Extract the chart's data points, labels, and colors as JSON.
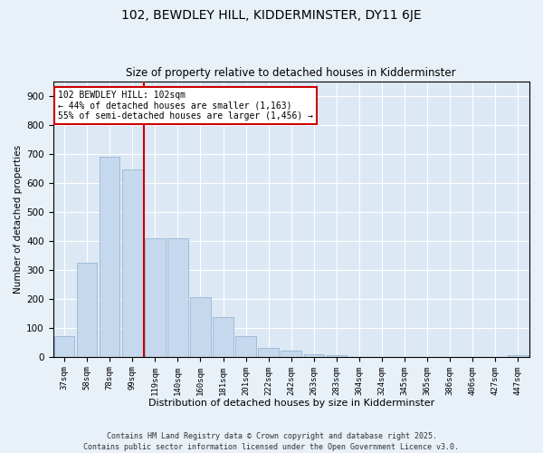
{
  "title1": "102, BEWDLEY HILL, KIDDERMINSTER, DY11 6JE",
  "title2": "Size of property relative to detached houses in Kidderminster",
  "xlabel": "Distribution of detached houses by size in Kidderminster",
  "ylabel": "Number of detached properties",
  "categories": [
    "37sqm",
    "58sqm",
    "78sqm",
    "99sqm",
    "119sqm",
    "140sqm",
    "160sqm",
    "181sqm",
    "201sqm",
    "222sqm",
    "242sqm",
    "263sqm",
    "283sqm",
    "304sqm",
    "324sqm",
    "345sqm",
    "365sqm",
    "386sqm",
    "406sqm",
    "427sqm",
    "447sqm"
  ],
  "values": [
    70,
    325,
    690,
    645,
    410,
    410,
    205,
    138,
    70,
    30,
    20,
    10,
    5,
    0,
    0,
    0,
    0,
    0,
    0,
    0,
    5
  ],
  "bar_color": "#c5d8ed",
  "bar_edge_color": "#a0bcd8",
  "vline_x": 3.5,
  "vline_color": "#cc0000",
  "annotation_text": "102 BEWDLEY HILL: 102sqm\n← 44% of detached houses are smaller (1,163)\n55% of semi-detached houses are larger (1,456) →",
  "annotation_box_color": "#ffffff",
  "annotation_box_edge": "#cc0000",
  "ylim": [
    0,
    950
  ],
  "yticks": [
    0,
    100,
    200,
    300,
    400,
    500,
    600,
    700,
    800,
    900
  ],
  "footnote": "Contains HM Land Registry data © Crown copyright and database right 2025.\nContains public sector information licensed under the Open Government Licence v3.0.",
  "bg_color": "#e8f0f8",
  "plot_bg_color": "#dce8f4",
  "grid_color": "#ffffff",
  "title1_fontsize": 10,
  "title2_fontsize": 8.5
}
